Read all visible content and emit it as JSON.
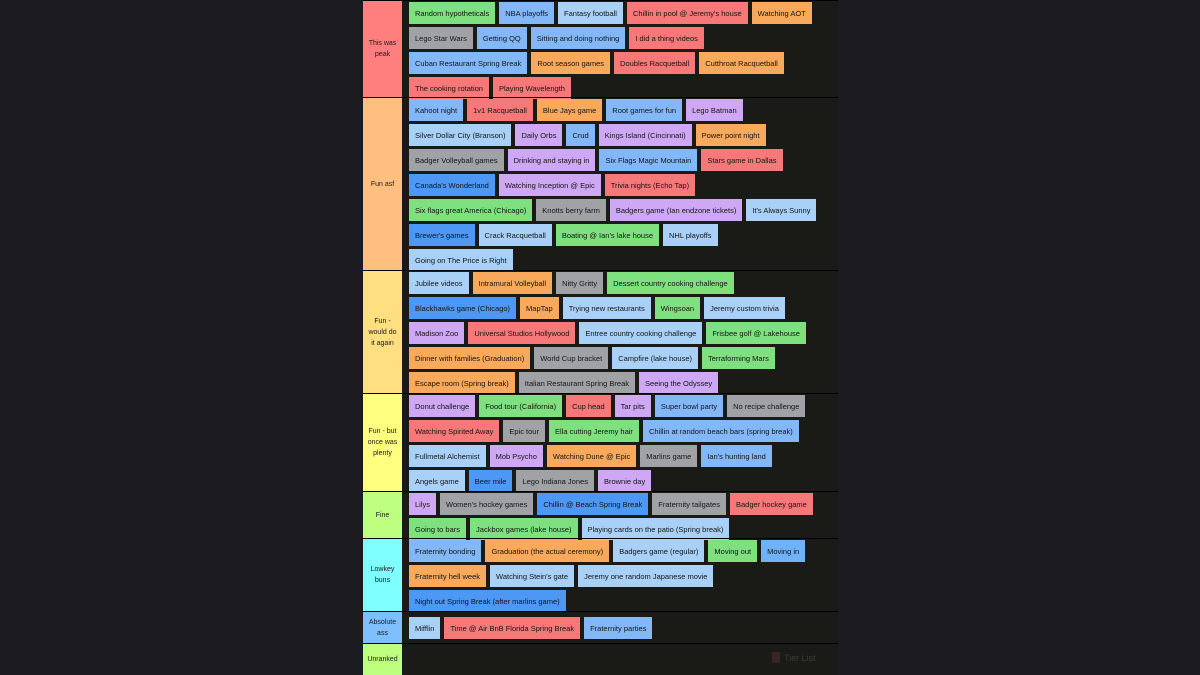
{
  "tiers": [
    {
      "label": "This was peak",
      "color": "#ff7f7f",
      "rows": [
        [
          [
            "Random hypotheticals",
            "green"
          ],
          [
            "NBA playoffs",
            "blue"
          ],
          [
            "Fantasy football",
            "lblue"
          ],
          [
            "Chillin in pool @ Jeremy's house",
            "red"
          ],
          [
            "Watching AOT",
            "orange"
          ]
        ],
        [
          [
            "Lego Star Wars",
            "gray"
          ],
          [
            "Getting QQ",
            "blue"
          ],
          [
            "Sitting and doing nothing",
            "blue"
          ],
          [
            "I did a thing videos",
            "red"
          ]
        ],
        [
          [
            "Cuban Restaurant Spring Break",
            "blue"
          ],
          [
            "Root season games",
            "orange"
          ],
          [
            "Doubles Racquetball",
            "red"
          ],
          [
            "Cutthroat Racquetball",
            "orange"
          ]
        ],
        [
          [
            "The cooking rotation",
            "red"
          ],
          [
            "Playing Wavelength",
            "red"
          ]
        ]
      ]
    },
    {
      "label": "Fun asf",
      "color": "#ffbf7f",
      "rows": [
        [
          [
            "Kahoot night",
            "blue"
          ],
          [
            "1v1 Racquetball",
            "red"
          ],
          [
            "Blue Jays game",
            "orange"
          ],
          [
            "Root games for fun",
            "blue"
          ],
          [
            "Lego Batman",
            "purple"
          ]
        ],
        [
          [
            "Silver Dollar City (Branson)",
            "lblue"
          ],
          [
            "Daily Orbs",
            "purple"
          ],
          [
            "Crud",
            "blue"
          ],
          [
            "Kings Island (Cincinnati)",
            "purple"
          ],
          [
            "Power point night",
            "orange"
          ]
        ],
        [
          [
            "Badger Volleyball games",
            "gray"
          ],
          [
            "Drinking and staying in",
            "purple"
          ],
          [
            "Six Flags Magic Mountain",
            "blue"
          ],
          [
            "Stars game in Dallas",
            "red"
          ]
        ],
        [
          [
            "Canada's Wonderland",
            "dblue"
          ],
          [
            "Watching Inception @ Epic",
            "purple"
          ],
          [
            "Trivia nights (Echo Tap)",
            "red"
          ]
        ],
        [
          [
            "Six flags great America (Chicago)",
            "green"
          ],
          [
            "Knotts berry farm",
            "gray"
          ],
          [
            "Badgers game (Ian endzone tickets)",
            "purple"
          ],
          [
            "It's Always Sunny",
            "lblue"
          ]
        ],
        [
          [
            "Brewer's games",
            "dblue"
          ],
          [
            "Crack Racquetball",
            "lblue"
          ],
          [
            "Boating @ Ian's lake house",
            "green"
          ],
          [
            "NHL playoffs",
            "lblue"
          ]
        ],
        [
          [
            "Going on The Price is Right",
            "lblue"
          ]
        ]
      ]
    },
    {
      "label": "Fun -\nwould do\nit again",
      "color": "#ffdf7f",
      "rows": [
        [
          [
            "Jubilee videos",
            "lblue"
          ],
          [
            "Intramural Volleyball",
            "orange"
          ],
          [
            "Nitty Gritty",
            "gray"
          ],
          [
            "Dessert country cooking challenge",
            "green"
          ]
        ],
        [
          [
            "Blackhawks game (Chicago)",
            "dblue"
          ],
          [
            "MapTap",
            "orange"
          ],
          [
            "Trying new restaurants",
            "lblue"
          ],
          [
            "Wingsoan",
            "green"
          ],
          [
            "Jeremy custom trivia",
            "lblue"
          ]
        ],
        [
          [
            "Madison Zoo",
            "purple"
          ],
          [
            "Universal Studios Hollywood",
            "red"
          ],
          [
            "Entree country cooking challenge",
            "lblue"
          ],
          [
            "Frisbee golf @ Lakehouse",
            "green"
          ]
        ],
        [
          [
            "Dinner with families (Graduation)",
            "orange"
          ],
          [
            "World Cup bracket",
            "gray"
          ],
          [
            "Campfire (lake house)",
            "lblue"
          ],
          [
            "Terraforming Mars",
            "green"
          ]
        ],
        [
          [
            "Escape room (Spring break)",
            "orange"
          ],
          [
            "Italian Restaurant Spring Break",
            "gray"
          ],
          [
            "Seeing the Odyssey",
            "purple"
          ]
        ]
      ]
    },
    {
      "label": "Fun - but\nonce was\nplenty",
      "color": "#ffff7f",
      "rows": [
        [
          [
            "Donut challenge",
            "purple"
          ],
          [
            "Food tour (California)",
            "green"
          ],
          [
            "Cup head",
            "red"
          ],
          [
            "Tar pits",
            "purple"
          ],
          [
            "Super bowl party",
            "blue"
          ],
          [
            "No recipe challenge",
            "gray"
          ]
        ],
        [
          [
            "Watching Spirited Away",
            "red"
          ],
          [
            "Epic tour",
            "gray"
          ],
          [
            "Ella cutting Jeremy hair",
            "green"
          ],
          [
            "Chillin at random beach bars (spring break)",
            "blue"
          ]
        ],
        [
          [
            "Fullmetal Alchemist",
            "lblue"
          ],
          [
            "Mob Psycho",
            "purple"
          ],
          [
            "Watching Dune @ Epic",
            "orange"
          ],
          [
            "Marlins game",
            "gray"
          ],
          [
            "Ian's hunting land",
            "blue"
          ]
        ],
        [
          [
            "Angels game",
            "lblue"
          ],
          [
            "Beer mile",
            "dblue"
          ],
          [
            "Lego Indiana Jones",
            "gray"
          ],
          [
            "Brownie day",
            "purple"
          ]
        ]
      ]
    },
    {
      "label": "Fine",
      "color": "#bfff7f",
      "rows": [
        [
          [
            "Lilys",
            "purple"
          ],
          [
            "Women's hockey games",
            "gray"
          ],
          [
            "Chillin @ Beach Spring Break",
            "dblue"
          ],
          [
            "Fraternity tailgates",
            "gray"
          ],
          [
            "Badger hockey game",
            "red"
          ]
        ],
        [
          [
            "Going to bars",
            "green"
          ],
          [
            "Jackbox games (lake house)",
            "green"
          ],
          [
            "Playing cards on the patio (Spring break)",
            "lblue"
          ]
        ]
      ]
    },
    {
      "label": "Lowkey\nbuns",
      "color": "#7fffff",
      "rows": [
        [
          [
            "Fraternity bonding",
            "blue"
          ],
          [
            "Graduation (the actual ceremony)",
            "orange"
          ],
          [
            "Badgers game (regular)",
            "lblue"
          ],
          [
            "Moving out",
            "green"
          ],
          [
            "Moving in",
            "sky"
          ]
        ],
        [
          [
            "Fraternity hell week",
            "orange"
          ],
          [
            "Watching Stein's gate",
            "lblue"
          ],
          [
            "Jeremy one random Japanese movie",
            "lblue"
          ]
        ],
        [
          [
            "Night out Spring Break (after marlins game)",
            "dblue"
          ]
        ]
      ]
    },
    {
      "label": "Absolute\nass",
      "color": "#7fbfff",
      "rows": [
        [
          [
            "Mifflin",
            "lblue"
          ],
          [
            "Time @ Air BnB Florida Spring Break",
            "red"
          ],
          [
            "Fraternity parties",
            "blue"
          ]
        ]
      ]
    },
    {
      "label": "Unranked",
      "color": "#bfff7f",
      "rows": []
    }
  ],
  "watermark": "Tier List"
}
